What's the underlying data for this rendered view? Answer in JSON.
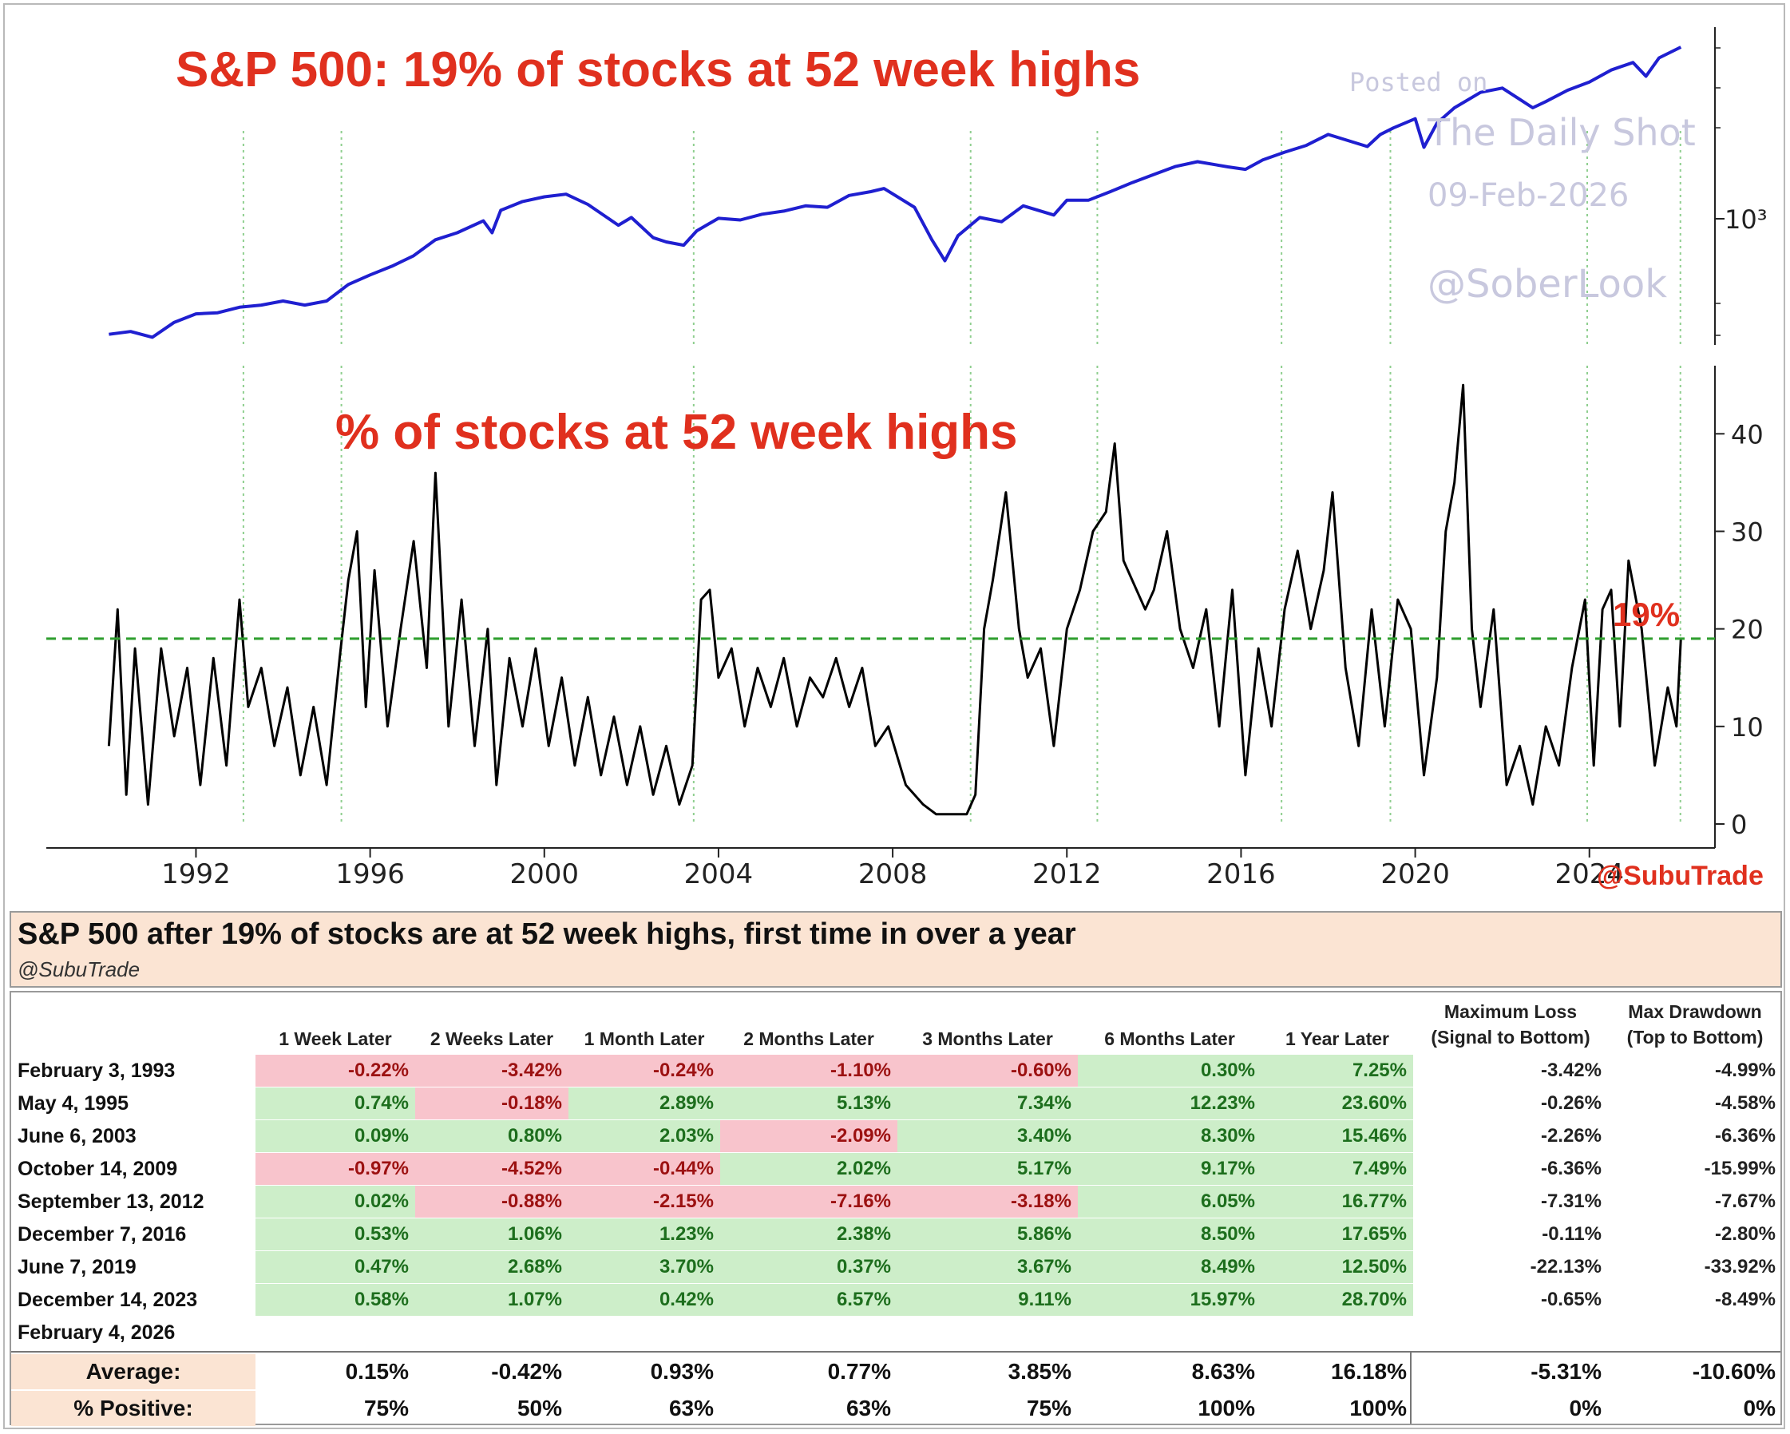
{
  "chart_data": [
    {
      "type": "line",
      "title": "S&P 500: 19% of stocks at 52 week highs",
      "yscale": "log",
      "ytick_labels": [
        "10³"
      ],
      "series": [
        {
          "name": "S&P 500",
          "x": [
            1990.0,
            1990.5,
            1991.0,
            1991.5,
            1992.0,
            1992.5,
            1993.0,
            1993.5,
            1994.0,
            1994.5,
            1995.0,
            1995.5,
            1996.0,
            1996.5,
            1997.0,
            1997.5,
            1998.0,
            1998.6,
            1998.8,
            1999.0,
            1999.5,
            2000.0,
            2000.5,
            2001.0,
            2001.7,
            2002.0,
            2002.5,
            2002.8,
            2003.2,
            2003.5,
            2004.0,
            2004.5,
            2005.0,
            2005.5,
            2006.0,
            2006.5,
            2007.0,
            2007.5,
            2007.8,
            2008.5,
            2008.9,
            2009.2,
            2009.5,
            2010.0,
            2010.5,
            2011.0,
            2011.7,
            2012.0,
            2012.5,
            2013.0,
            2013.5,
            2014.0,
            2014.5,
            2015.0,
            2015.7,
            2016.1,
            2016.5,
            2017.0,
            2017.5,
            2018.0,
            2018.9,
            2019.2,
            2019.5,
            2020.0,
            2020.2,
            2020.5,
            2020.9,
            2021.5,
            2022.0,
            2022.7,
            2023.0,
            2023.5,
            2024.0,
            2024.5,
            2025.0,
            2025.3,
            2025.6,
            2026.1
          ],
          "values": [
            330,
            340,
            320,
            375,
            410,
            415,
            440,
            450,
            470,
            450,
            470,
            560,
            620,
            680,
            760,
            900,
            970,
            1100,
            970,
            1230,
            1350,
            1420,
            1460,
            1310,
            1050,
            1140,
            920,
            880,
            850,
            990,
            1130,
            1110,
            1180,
            1220,
            1290,
            1270,
            1440,
            1500,
            1550,
            1270,
            900,
            720,
            940,
            1140,
            1090,
            1290,
            1170,
            1370,
            1370,
            1500,
            1650,
            1800,
            1960,
            2060,
            1950,
            1900,
            2100,
            2280,
            2450,
            2750,
            2420,
            2750,
            2950,
            3250,
            2400,
            3100,
            3650,
            4300,
            4500,
            3650,
            3900,
            4400,
            4800,
            5450,
            5900,
            5100,
            6200,
            6950
          ]
        }
      ]
    },
    {
      "type": "area",
      "title": "% of stocks at 52 week highs",
      "xlim": [
        1989.7,
        2026.7
      ],
      "ylim": [
        0,
        46
      ],
      "xticks": [
        1992,
        1996,
        2000,
        2004,
        2008,
        2012,
        2016,
        2020,
        2024
      ],
      "yticks": [
        0,
        10,
        20,
        30,
        40
      ],
      "threshold": {
        "value": 19,
        "label": "19%"
      },
      "signal_dates": [
        1993.09,
        1995.34,
        2003.43,
        2009.79,
        2012.7,
        2016.93,
        2019.43,
        2023.95,
        2026.09
      ],
      "series": [
        {
          "name": "% of stocks at 52 week highs",
          "x": [
            1990.0,
            1990.2,
            1990.4,
            1990.6,
            1990.9,
            1991.2,
            1991.5,
            1991.8,
            1992.1,
            1992.4,
            1992.7,
            1993.0,
            1993.2,
            1993.5,
            1993.8,
            1994.1,
            1994.4,
            1994.7,
            1995.0,
            1995.3,
            1995.5,
            1995.7,
            1995.9,
            1996.1,
            1996.4,
            1996.7,
            1997.0,
            1997.3,
            1997.5,
            1997.8,
            1998.1,
            1998.4,
            1998.7,
            1998.9,
            1999.2,
            1999.5,
            1999.8,
            2000.1,
            2000.4,
            2000.7,
            2001.0,
            2001.3,
            2001.6,
            2001.9,
            2002.2,
            2002.5,
            2002.8,
            2003.1,
            2003.4,
            2003.6,
            2003.8,
            2004.0,
            2004.3,
            2004.6,
            2004.9,
            2005.2,
            2005.5,
            2005.8,
            2006.1,
            2006.4,
            2006.7,
            2007.0,
            2007.3,
            2007.6,
            2007.9,
            2008.3,
            2008.7,
            2009.0,
            2009.4,
            2009.7,
            2009.9,
            2010.1,
            2010.3,
            2010.6,
            2010.9,
            2011.1,
            2011.4,
            2011.7,
            2012.0,
            2012.3,
            2012.6,
            2012.9,
            2013.1,
            2013.3,
            2013.5,
            2013.8,
            2014.0,
            2014.3,
            2014.6,
            2014.9,
            2015.2,
            2015.5,
            2015.8,
            2016.1,
            2016.4,
            2016.7,
            2017.0,
            2017.3,
            2017.6,
            2017.9,
            2018.1,
            2018.4,
            2018.7,
            2019.0,
            2019.3,
            2019.6,
            2019.9,
            2020.2,
            2020.5,
            2020.7,
            2020.9,
            2021.1,
            2021.3,
            2021.5,
            2021.8,
            2022.1,
            2022.4,
            2022.7,
            2023.0,
            2023.3,
            2023.6,
            2023.9,
            2024.1,
            2024.3,
            2024.5,
            2024.7,
            2024.9,
            2025.2,
            2025.5,
            2025.8,
            2026.0,
            2026.1
          ],
          "values": [
            8,
            22,
            3,
            18,
            2,
            18,
            9,
            16,
            4,
            17,
            6,
            23,
            12,
            16,
            8,
            14,
            5,
            12,
            4,
            17,
            25,
            30,
            12,
            26,
            10,
            20,
            29,
            16,
            36,
            10,
            23,
            8,
            20,
            4,
            17,
            10,
            18,
            8,
            15,
            6,
            13,
            5,
            11,
            4,
            10,
            3,
            8,
            2,
            6,
            23,
            24,
            15,
            18,
            10,
            16,
            12,
            17,
            10,
            15,
            13,
            17,
            12,
            16,
            8,
            10,
            4,
            2,
            1,
            1,
            1,
            3,
            20,
            25,
            34,
            20,
            15,
            18,
            8,
            20,
            24,
            30,
            32,
            39,
            27,
            25,
            22,
            24,
            30,
            20,
            16,
            22,
            10,
            24,
            5,
            18,
            10,
            22,
            28,
            20,
            26,
            34,
            16,
            8,
            22,
            10,
            23,
            20,
            5,
            15,
            30,
            35,
            45,
            20,
            12,
            22,
            4,
            8,
            2,
            10,
            6,
            16,
            23,
            6,
            22,
            24,
            10,
            27,
            20,
            6,
            14,
            10,
            19
          ]
        }
      ]
    }
  ],
  "chart_text": {
    "top_title": "S&P 500: 19% of stocks at 52 week highs",
    "bottom_title": "% of stocks at 52 week highs",
    "y_tick_log": "10³",
    "threshold_label": "19%",
    "credit": "@SubuTrade",
    "watermark_posted": "Posted on",
    "watermark_source": "The Daily Shot",
    "watermark_date": "09-Feb-2026",
    "watermark_handle": "@SoberLook"
  },
  "colors": {
    "title_red": "#e0301e",
    "index_line": "#1f1fd0",
    "pct_line": "#000000",
    "threshold_line": "#2e9e2e",
    "signal_line": "#8fcf8f",
    "watermark": "#c8c8de",
    "pos_fill": "#cdeec9",
    "neg_fill": "#f8c4cc",
    "header_fill": "#fbe4d3"
  },
  "table": {
    "title": "S&P 500 after 19% of stocks are at 52 week highs, first time in over a year",
    "handle": "@SubuTrade",
    "columns": [
      "1 Week Later",
      "2 Weeks Later",
      "1 Month Later",
      "2 Months Later",
      "3 Months Later",
      "6 Months Later",
      "1 Year Later"
    ],
    "loss_columns": [
      {
        "line1": "Maximum Loss",
        "line2": "(Signal to Bottom)"
      },
      {
        "line1": "Max Drawdown",
        "line2": "(Top to Bottom)"
      }
    ],
    "rows": [
      {
        "date": "February 3, 1993",
        "values": [
          "-0.22%",
          "-3.42%",
          "-0.24%",
          "-1.10%",
          "-0.60%",
          "0.30%",
          "7.25%"
        ],
        "loss": [
          "-3.42%",
          "-4.99%"
        ]
      },
      {
        "date": "May 4, 1995",
        "values": [
          "0.74%",
          "-0.18%",
          "2.89%",
          "5.13%",
          "7.34%",
          "12.23%",
          "23.60%"
        ],
        "loss": [
          "-0.26%",
          "-4.58%"
        ]
      },
      {
        "date": "June 6, 2003",
        "values": [
          "0.09%",
          "0.80%",
          "2.03%",
          "-2.09%",
          "3.40%",
          "8.30%",
          "15.46%"
        ],
        "loss": [
          "-2.26%",
          "-6.36%"
        ]
      },
      {
        "date": "October 14, 2009",
        "values": [
          "-0.97%",
          "-4.52%",
          "-0.44%",
          "2.02%",
          "5.17%",
          "9.17%",
          "7.49%"
        ],
        "loss": [
          "-6.36%",
          "-15.99%"
        ]
      },
      {
        "date": "September 13, 2012",
        "values": [
          "0.02%",
          "-0.88%",
          "-2.15%",
          "-7.16%",
          "-3.18%",
          "6.05%",
          "16.77%"
        ],
        "loss": [
          "-7.31%",
          "-7.67%"
        ]
      },
      {
        "date": "December 7, 2016",
        "values": [
          "0.53%",
          "1.06%",
          "1.23%",
          "2.38%",
          "5.86%",
          "8.50%",
          "17.65%"
        ],
        "loss": [
          "-0.11%",
          "-2.80%"
        ]
      },
      {
        "date": "June 7, 2019",
        "values": [
          "0.47%",
          "2.68%",
          "3.70%",
          "0.37%",
          "3.67%",
          "8.49%",
          "12.50%"
        ],
        "loss": [
          "-22.13%",
          "-33.92%"
        ]
      },
      {
        "date": "December 14, 2023",
        "values": [
          "0.58%",
          "1.07%",
          "0.42%",
          "6.57%",
          "9.11%",
          "15.97%",
          "28.70%"
        ],
        "loss": [
          "-0.65%",
          "-8.49%"
        ]
      },
      {
        "date": "February 4, 2026",
        "values": [
          "",
          "",
          "",
          "",
          "",
          "",
          ""
        ],
        "loss": [
          "",
          ""
        ]
      }
    ],
    "summary": [
      {
        "label": "Average:",
        "values": [
          "0.15%",
          "-0.42%",
          "0.93%",
          "0.77%",
          "3.85%",
          "8.63%",
          "16.18%",
          "-5.31%",
          "-10.60%"
        ]
      },
      {
        "label": "% Positive:",
        "values": [
          "75%",
          "50%",
          "63%",
          "63%",
          "75%",
          "100%",
          "100%",
          "0%",
          "0%"
        ]
      }
    ]
  }
}
